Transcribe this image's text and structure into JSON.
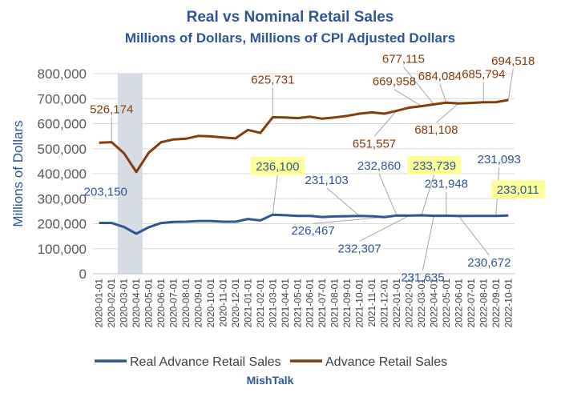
{
  "chart_data": {
    "type": "line",
    "title": "Real vs Nominal Retail Sales",
    "subtitle": "Millions of Dollars, Millions of CPI Adjusted Dollars",
    "ylabel": "Millions of Dollars",
    "xlabel": "",
    "ylim": [
      0,
      800000
    ],
    "y_ticks": [
      "0",
      "100,000",
      "200,000",
      "300,000",
      "400,000",
      "500,000",
      "600,000",
      "700,000",
      "800,000"
    ],
    "grid": true,
    "legend_position": "bottom",
    "shaded_region": {
      "start": "2020-03-01",
      "end": "2020-04-01"
    },
    "x": [
      "2020-01-01",
      "2020-02-01",
      "2020-03-01",
      "2020-04-01",
      "2020-05-01",
      "2020-06-01",
      "2020-07-01",
      "2020-08-01",
      "2020-09-01",
      "2020-10-01",
      "2020-11-01",
      "2020-12-01",
      "2021-01-01",
      "2021-02-01",
      "2021-03-01",
      "2021-04-01",
      "2021-05-01",
      "2021-06-01",
      "2021-07-01",
      "2021-08-01",
      "2021-09-01",
      "2021-10-01",
      "2021-11-01",
      "2021-12-01",
      "2022-01-01",
      "2022-02-01",
      "2022-03-01",
      "2022-04-01",
      "2022-05-01",
      "2022-06-01",
      "2022-07-01",
      "2022-08-01",
      "2022-09-01",
      "2022-10-01"
    ],
    "series": [
      {
        "name": "Real Advance Retail Sales",
        "color": "#2E5596",
        "values": [
          203150,
          203000,
          187000,
          160000,
          186000,
          203000,
          207000,
          208000,
          211000,
          211000,
          208000,
          208000,
          219000,
          213000,
          236100,
          234000,
          231000,
          231000,
          227000,
          229000,
          230000,
          231103,
          230000,
          226467,
          232860,
          232307,
          233739,
          231635,
          231948,
          230672,
          231000,
          231500,
          231093,
          233011
        ]
      },
      {
        "name": "Advance Retail Sales",
        "color": "#843C0C",
        "values": [
          524000,
          526174,
          482000,
          407000,
          484000,
          526000,
          537000,
          540000,
          551000,
          549000,
          545000,
          541000,
          575000,
          563000,
          625731,
          625000,
          622000,
          628000,
          620000,
          625000,
          631000,
          640000,
          645000,
          640000,
          651557,
          664000,
          669958,
          677115,
          684084,
          681108,
          683000,
          685794,
          686000,
          694518
        ]
      }
    ],
    "annotations": [
      {
        "text": "526,174",
        "series": 1,
        "index": 1,
        "highlight": false
      },
      {
        "text": "625,731",
        "series": 1,
        "index": 14,
        "highlight": false
      },
      {
        "text": "669,958",
        "series": 1,
        "index": 26,
        "highlight": false
      },
      {
        "text": "651,557",
        "series": 1,
        "index": 24,
        "highlight": false
      },
      {
        "text": "677,115",
        "series": 1,
        "index": 27,
        "highlight": false
      },
      {
        "text": "684,084",
        "series": 1,
        "index": 28,
        "highlight": false
      },
      {
        "text": "681,108",
        "series": 1,
        "index": 29,
        "highlight": false
      },
      {
        "text": "685,794",
        "series": 1,
        "index": 31,
        "highlight": false
      },
      {
        "text": "694,518",
        "series": 1,
        "index": 33,
        "highlight": false
      },
      {
        "text": "203,150",
        "series": 0,
        "index": 0,
        "highlight": false
      },
      {
        "text": "236,100",
        "series": 0,
        "index": 14,
        "highlight": true
      },
      {
        "text": "231,103",
        "series": 0,
        "index": 21,
        "highlight": false
      },
      {
        "text": "226,467",
        "series": 0,
        "index": 23,
        "highlight": false
      },
      {
        "text": "232,860",
        "series": 0,
        "index": 24,
        "highlight": false
      },
      {
        "text": "232,307",
        "series": 0,
        "index": 25,
        "highlight": false
      },
      {
        "text": "233,739",
        "series": 0,
        "index": 26,
        "highlight": true
      },
      {
        "text": "231,635",
        "series": 0,
        "index": 27,
        "highlight": false
      },
      {
        "text": "231,948",
        "series": 0,
        "index": 28,
        "highlight": false
      },
      {
        "text": "230,672",
        "series": 0,
        "index": 29,
        "highlight": false
      },
      {
        "text": "231,093",
        "series": 0,
        "index": 32,
        "highlight": false
      },
      {
        "text": "233,011",
        "series": 0,
        "index": 33,
        "highlight": true
      }
    ]
  },
  "footer": {
    "text": "MishTalk"
  },
  "colors": {
    "title": "#2E5596",
    "highlight": "#FFFF99",
    "grid": "#D9D9D9",
    "shade": "#D6DCE5"
  }
}
